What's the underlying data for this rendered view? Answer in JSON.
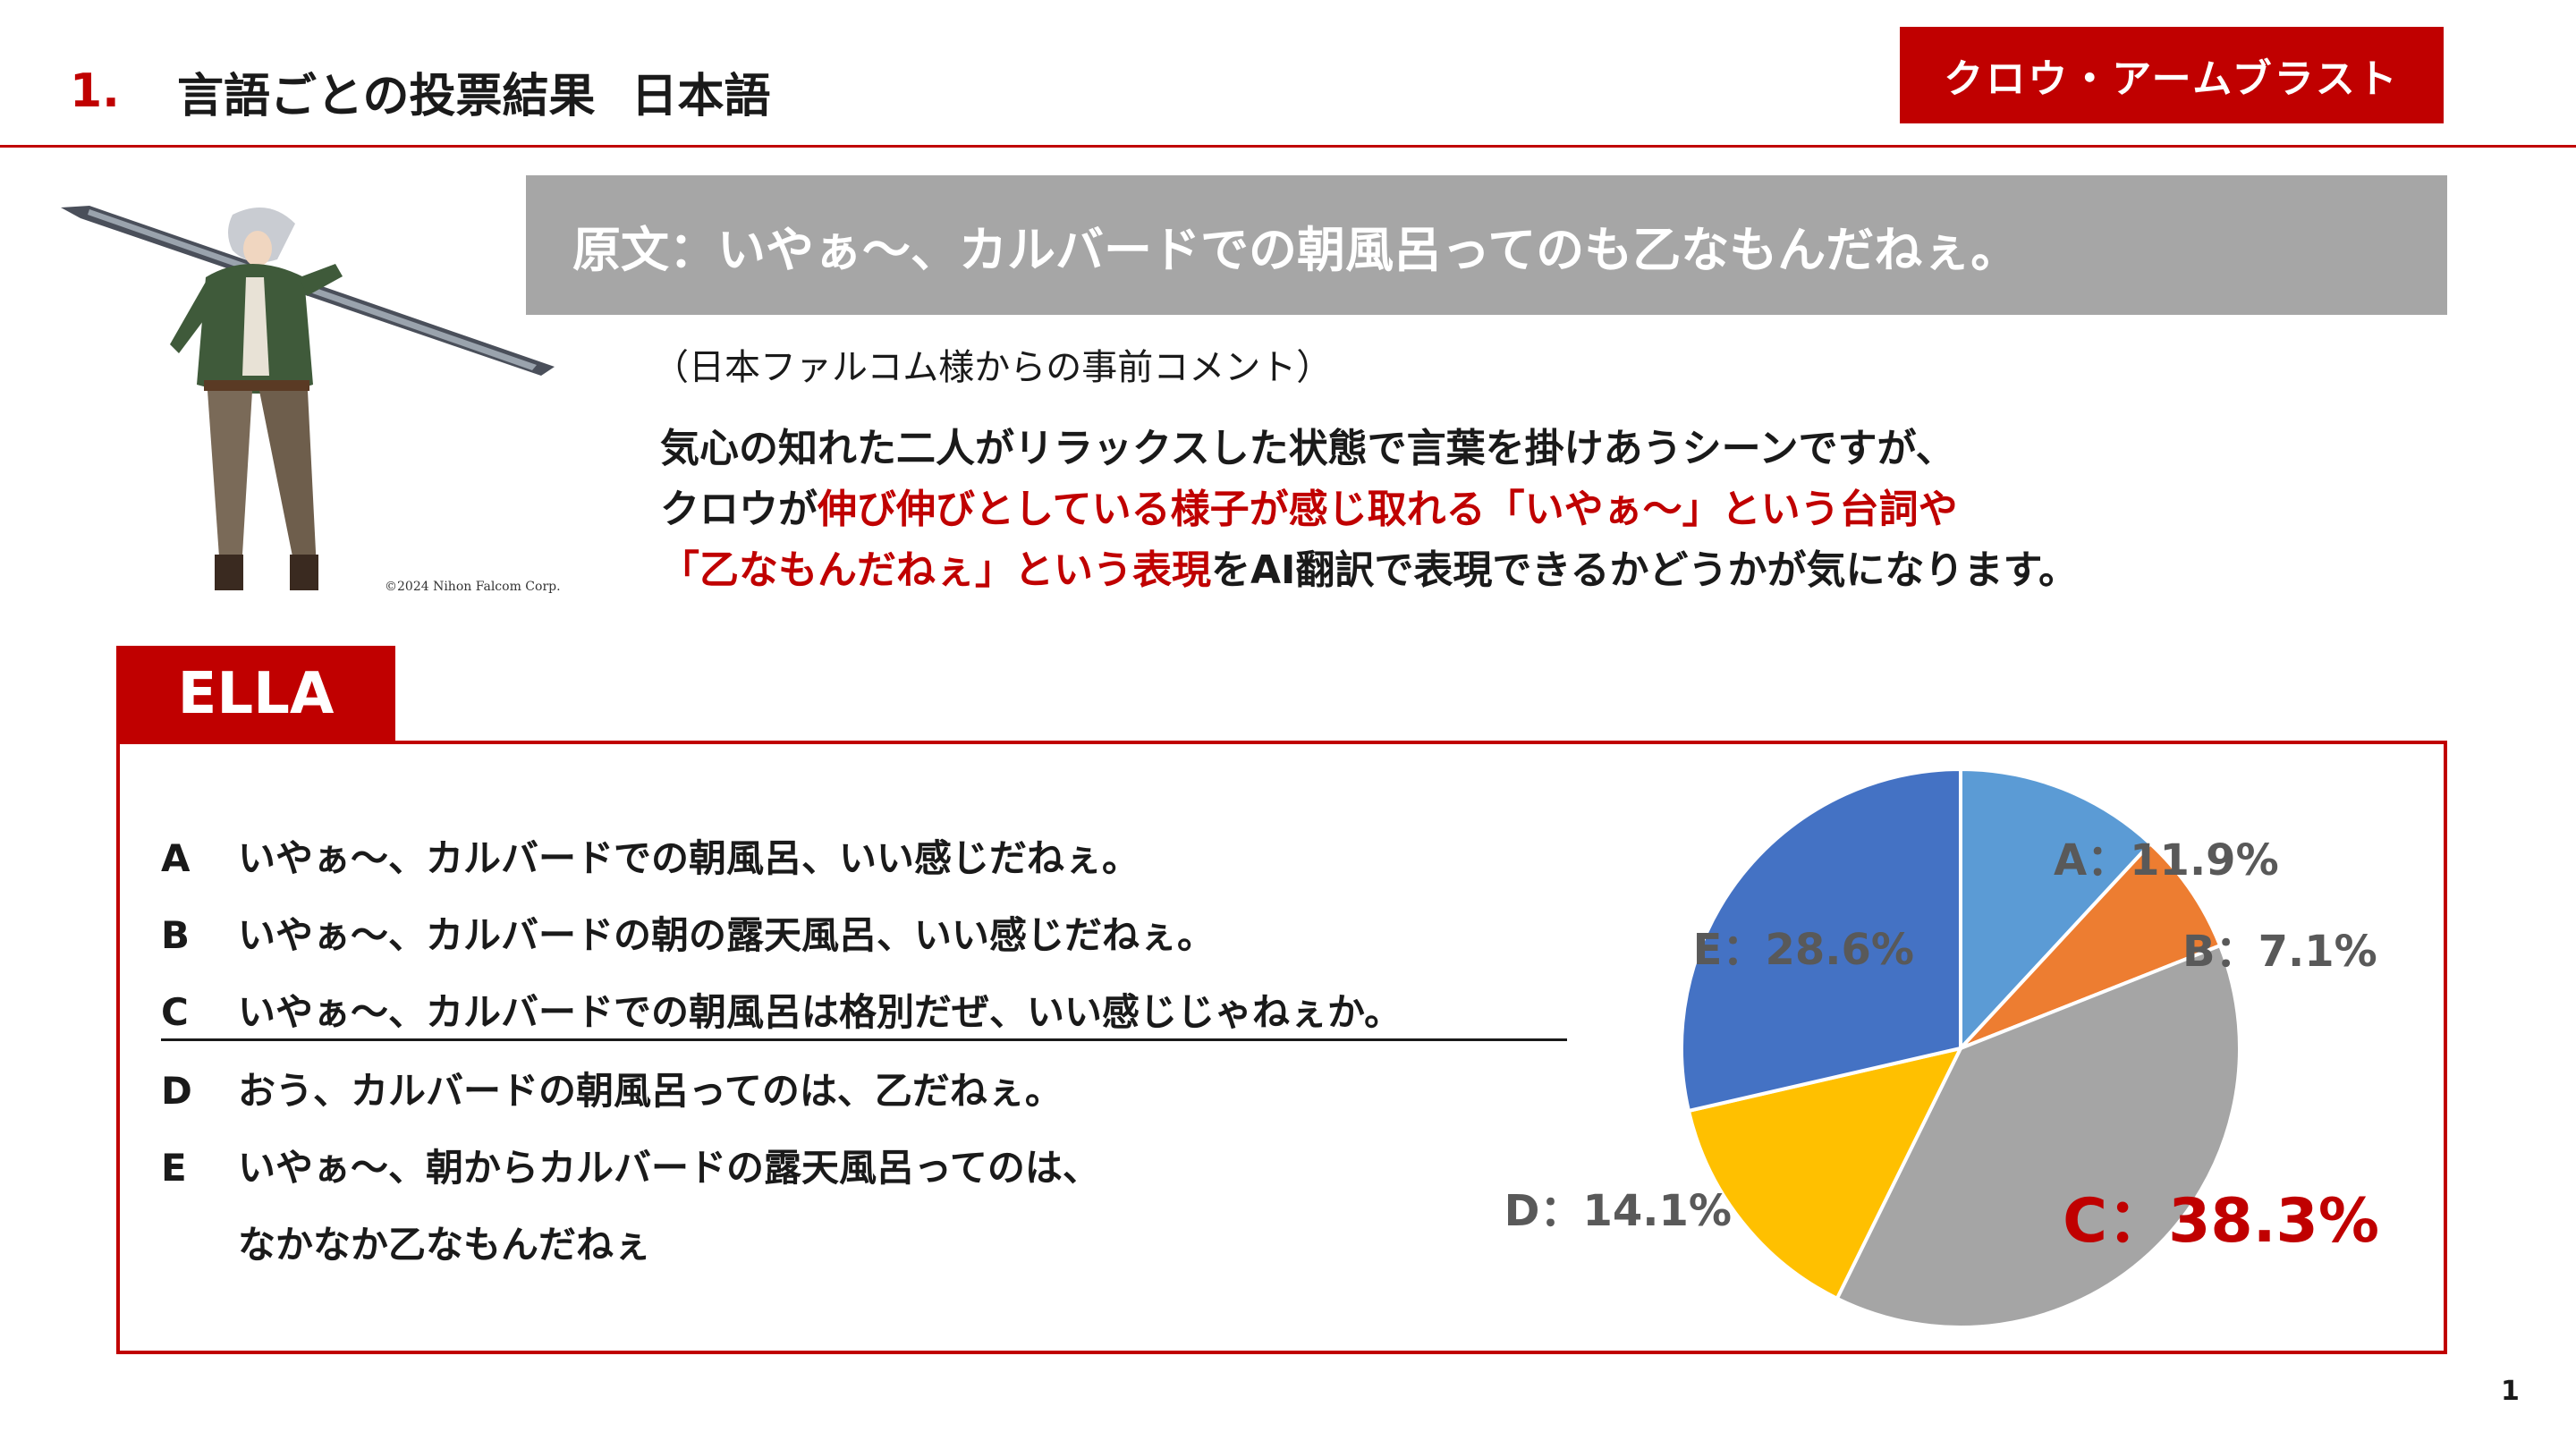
{
  "header": {
    "number": "1.",
    "title": "言語ごとの投票結果",
    "language": "日本語",
    "character_tag": "クロウ・アームブラスト"
  },
  "copyright": "©2024 Nihon Falcom Corp.",
  "source": {
    "text": "原文：いやぁ～、カルバードでの朝風呂ってのも乙なもんだねぇ。"
  },
  "comment": {
    "note": "（日本ファルコム様からの事前コメント）",
    "line1": "気心の知れた二人がリラックスした状態で言葉を掛けあうシーンですが、",
    "line2_pre": "クロウが",
    "line2_red": "伸び伸びとしている様子が感じ取れる「いやぁ～」という台詞や",
    "line3_red": "「乙なもんだねぇ」という表現",
    "line3_post": "をAI翻訳で表現できるかどうかが気になります。"
  },
  "model_label": "ELLA",
  "options": [
    {
      "letter": "A",
      "text": "いやぁ～、カルバードでの朝風呂、いい感じだねぇ。"
    },
    {
      "letter": "B",
      "text": "いやぁ～、カルバードの朝の露天風呂、いい感じだねぇ。"
    },
    {
      "letter": "C",
      "text": "いやぁ～、カルバードでの朝風呂は格別だぜ、いい感じじゃねぇか。"
    },
    {
      "letter": "D",
      "text": "おう、カルバードの朝風呂ってのは、乙だねぇ。"
    },
    {
      "letter": "E",
      "text": "いやぁ～、朝からカルバードの露天風呂ってのは、",
      "continuation": "なかなか乙なもんだねぇ"
    }
  ],
  "chart_data": {
    "type": "pie",
    "title": "",
    "categories": [
      "A",
      "B",
      "C",
      "D",
      "E"
    ],
    "values": [
      11.9,
      7.1,
      38.3,
      14.1,
      28.6
    ],
    "labels": [
      "A：11.9%",
      "B：7.1%",
      "C：38.3%",
      "D：14.1%",
      "E：28.6%"
    ],
    "colors": [
      "#5b9bd5",
      "#ed7d31",
      "#a5a5a5",
      "#ffc000",
      "#4472c4"
    ],
    "highlight_category": "C",
    "highlight_color": "#c00000",
    "label_color": "#595959",
    "legend": "none"
  },
  "page_number": "1"
}
